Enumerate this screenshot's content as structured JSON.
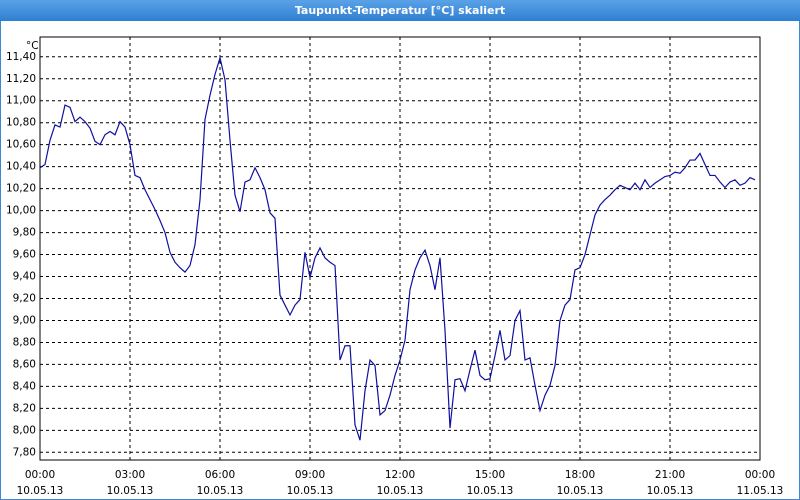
{
  "chart_data": {
    "type": "line",
    "title": "Taupunkt-Temperatur [°C] skaliert",
    "y_unit": "°C",
    "x": [
      0,
      10,
      20,
      30,
      40,
      50,
      60,
      70,
      80,
      90,
      100,
      110,
      120,
      130,
      140,
      150,
      160,
      170,
      180,
      190,
      200,
      210,
      220,
      230,
      240,
      250,
      260,
      270,
      280,
      290,
      300,
      310,
      320,
      330,
      340,
      350,
      360,
      370,
      380,
      390,
      400,
      410,
      420,
      430,
      440,
      450,
      460,
      470,
      480,
      490,
      500,
      510,
      520,
      530,
      540,
      550,
      560,
      570,
      580,
      590,
      600,
      610,
      620,
      630,
      640,
      650,
      660,
      670,
      680,
      690,
      700,
      710,
      720,
      730,
      740,
      750,
      760,
      770,
      780,
      790,
      800,
      810,
      820,
      830,
      840,
      850,
      860,
      870,
      880,
      890,
      900,
      910,
      920,
      930,
      940,
      950,
      960,
      970,
      980,
      990,
      1000,
      1010,
      1020,
      1030,
      1040,
      1050,
      1060,
      1070,
      1080,
      1090,
      1100,
      1110,
      1120,
      1130,
      1140,
      1150,
      1160,
      1170,
      1180,
      1190,
      1200,
      1210,
      1220,
      1230,
      1240,
      1250,
      1260,
      1270,
      1280,
      1290,
      1300,
      1310,
      1320,
      1330,
      1340,
      1350,
      1360,
      1370,
      1380,
      1390,
      1400,
      1410,
      1420,
      1430
    ],
    "series": [
      {
        "color": "#1010a0",
        "values": [
          10.39,
          10.42,
          10.64,
          10.78,
          10.76,
          10.96,
          10.94,
          10.81,
          10.85,
          10.81,
          10.75,
          10.63,
          10.6,
          10.69,
          10.72,
          10.69,
          10.81,
          10.76,
          10.6,
          10.32,
          10.3,
          10.19,
          10.1,
          10.01,
          9.91,
          9.8,
          9.62,
          9.53,
          9.48,
          9.44,
          9.5,
          9.69,
          10.1,
          10.83,
          11.05,
          11.24,
          11.39,
          11.19,
          10.64,
          10.14,
          9.99,
          10.26,
          10.28,
          10.39,
          10.3,
          10.19,
          9.98,
          9.93,
          9.23,
          9.14,
          9.05,
          9.14,
          9.19,
          9.62,
          9.39,
          9.57,
          9.66,
          9.57,
          9.53,
          9.5,
          8.64,
          8.77,
          8.77,
          8.05,
          7.91,
          8.36,
          8.64,
          8.59,
          8.14,
          8.18,
          8.32,
          8.5,
          8.64,
          8.82,
          9.28,
          9.46,
          9.57,
          9.64,
          9.5,
          9.28,
          9.57,
          8.91,
          8.02,
          8.46,
          8.47,
          8.36,
          8.55,
          8.73,
          8.5,
          8.46,
          8.47,
          8.68,
          8.91,
          8.64,
          8.68,
          9.0,
          9.09,
          8.64,
          8.66,
          8.41,
          8.18,
          8.32,
          8.41,
          8.59,
          9.0,
          9.14,
          9.19,
          9.46,
          9.48,
          9.6,
          9.78,
          9.96,
          10.05,
          10.1,
          10.14,
          10.19,
          10.23,
          10.21,
          10.19,
          10.25,
          10.19,
          10.28,
          10.21,
          10.25,
          10.28,
          10.31,
          10.32,
          10.35,
          10.34,
          10.39,
          10.46,
          10.46,
          10.52,
          10.42,
          10.32,
          10.32,
          10.26,
          10.21,
          10.26,
          10.28,
          10.23,
          10.25,
          10.3,
          10.28
        ]
      }
    ],
    "xlim": [
      0,
      1440
    ],
    "xticks": [
      {
        "value": 0,
        "label": "00:00"
      },
      {
        "value": 180,
        "label": "03:00"
      },
      {
        "value": 360,
        "label": "06:00"
      },
      {
        "value": 540,
        "label": "09:00"
      },
      {
        "value": 720,
        "label": "12:00"
      },
      {
        "value": 900,
        "label": "15:00"
      },
      {
        "value": 1080,
        "label": "18:00"
      },
      {
        "value": 1260,
        "label": "21:00"
      },
      {
        "value": 1440,
        "label": "00:00"
      }
    ],
    "xtick_dates": [
      "10.05.13",
      "10.05.13",
      "10.05.13",
      "10.05.13",
      "10.05.13",
      "10.05.13",
      "10.05.13",
      "10.05.13",
      "11.05.13"
    ],
    "ylim": [
      7.73,
      11.58
    ],
    "yticks": [
      {
        "value": 7.8,
        "label": "7,80"
      },
      {
        "value": 8.0,
        "label": "8,00"
      },
      {
        "value": 8.2,
        "label": "8,20"
      },
      {
        "value": 8.4,
        "label": "8,40"
      },
      {
        "value": 8.6,
        "label": "8,60"
      },
      {
        "value": 8.8,
        "label": "8,80"
      },
      {
        "value": 9.0,
        "label": "9,00"
      },
      {
        "value": 9.2,
        "label": "9,20"
      },
      {
        "value": 9.4,
        "label": "9,40"
      },
      {
        "value": 9.6,
        "label": "9,60"
      },
      {
        "value": 9.8,
        "label": "9,80"
      },
      {
        "value": 10.0,
        "label": "10,00"
      },
      {
        "value": 10.2,
        "label": "10,20"
      },
      {
        "value": 10.4,
        "label": "10,40"
      },
      {
        "value": 10.6,
        "label": "10,60"
      },
      {
        "value": 10.8,
        "label": "10,80"
      },
      {
        "value": 11.0,
        "label": "11,00"
      },
      {
        "value": 11.2,
        "label": "11,20"
      },
      {
        "value": 11.4,
        "label": "11,40"
      }
    ],
    "grid": true
  }
}
